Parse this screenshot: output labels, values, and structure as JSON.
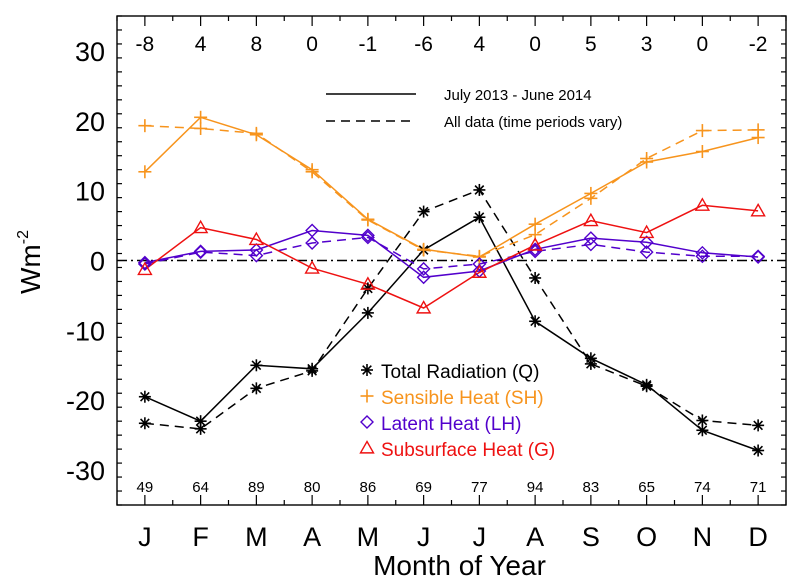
{
  "chart_data": {
    "type": "line",
    "title": "",
    "xlabel": "Month of Year",
    "ylabel_base": "Wm",
    "ylabel_sup": "-2",
    "categories": [
      "J",
      "F",
      "M",
      "A",
      "M",
      "J",
      "J",
      "A",
      "S",
      "O",
      "N",
      "D"
    ],
    "ylim": [
      -35,
      35
    ],
    "yticks": [
      30,
      20,
      10,
      0,
      -10,
      -20,
      -30
    ],
    "top_labels": [
      "-8",
      "4",
      "8",
      "0",
      "-1",
      "-6",
      "4",
      "0",
      "5",
      "3",
      "0",
      "-2"
    ],
    "bottom_labels": [
      "49",
      "64",
      "89",
      "80",
      "86",
      "69",
      "77",
      "94",
      "83",
      "65",
      "74",
      "71"
    ],
    "line_legend": [
      {
        "label": "July 2013 - June 2014",
        "style": "solid"
      },
      {
        "label": "All data (time periods vary)",
        "style": "dashed"
      }
    ],
    "series": [
      {
        "name": "Total Radiation (Q)",
        "color": "#000000",
        "marker": "asterisk",
        "solid": [
          -19.5,
          -23.0,
          -15.0,
          -15.5,
          -7.5,
          1.5,
          6.2,
          -8.7,
          -14.0,
          -17.8,
          -24.3,
          -27.2
        ],
        "dashed": [
          -23.3,
          -24.1,
          -18.3,
          -15.8,
          -4.0,
          7.0,
          10.1,
          -2.5,
          -14.8,
          -18.0,
          -22.9,
          -23.6
        ]
      },
      {
        "name": "Sensible Heat (SH)",
        "color": "#f7941d",
        "marker": "plus",
        "solid": [
          12.7,
          20.5,
          18.0,
          13.0,
          5.9,
          1.6,
          0.5,
          5.2,
          9.6,
          14.1,
          15.6,
          17.6
        ],
        "dashed": [
          19.3,
          18.9,
          18.2,
          12.7,
          5.8,
          1.5,
          0.6,
          3.7,
          8.9,
          14.6,
          18.6,
          18.7
        ]
      },
      {
        "name": "Latent Heat (LH)",
        "color": "#5200cc",
        "marker": "diamond",
        "solid": [
          -0.3,
          1.3,
          1.5,
          4.3,
          3.6,
          -2.4,
          -1.5,
          1.6,
          3.2,
          2.6,
          1.1,
          0.5
        ],
        "dashed": [
          -0.5,
          1.2,
          0.7,
          2.5,
          3.3,
          -1.2,
          -0.5,
          1.3,
          2.3,
          1.2,
          0.6,
          0.6
        ]
      },
      {
        "name": "Subsurface Heat (G)",
        "color": "#ee1111",
        "marker": "triangle",
        "solid": [
          -1.3,
          4.7,
          3.0,
          -1.1,
          -3.4,
          -6.8,
          -1.7,
          2.2,
          5.7,
          4.0,
          7.9,
          7.1
        ],
        "dashed": null
      }
    ]
  }
}
